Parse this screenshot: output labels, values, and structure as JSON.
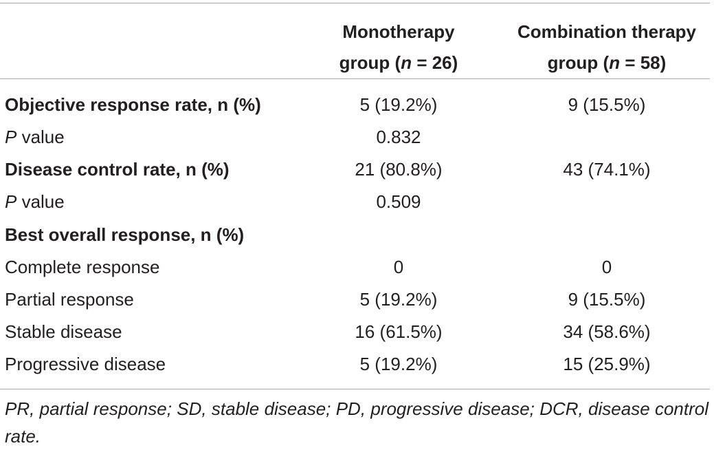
{
  "header": {
    "col1": {
      "line1": "Monotherapy",
      "line2_pre": "group (",
      "line2_n": "n",
      "line2_post": " = 26)"
    },
    "col2": {
      "line1": "Combination therapy",
      "line2_pre": "group (",
      "line2_n": "n",
      "line2_post": " = 58)"
    }
  },
  "rows": [
    {
      "label": "Objective response rate, n (%)",
      "mono": "5 (19.2%)",
      "combo": "9 (15.5%)"
    },
    {
      "label_italic": "P",
      "label_rest": " value",
      "mono": "0.832",
      "combo": ""
    },
    {
      "label": "Disease control rate, n (%)",
      "mono": "21 (80.8%)",
      "combo": "43 (74.1%)"
    },
    {
      "label_italic": "P",
      "label_rest": " value",
      "mono": "0.509",
      "combo": ""
    },
    {
      "label": "Best overall response, n (%)",
      "mono": "",
      "combo": ""
    },
    {
      "label": "Complete response",
      "mono": "0",
      "combo": "0"
    },
    {
      "label": "Partial response",
      "mono": "5 (19.2%)",
      "combo": "9 (15.5%)"
    },
    {
      "label": "Stable disease",
      "mono": "16 (61.5%)",
      "combo": "34 (58.6%)"
    },
    {
      "label": "Progressive disease",
      "mono": "5 (19.2%)",
      "combo": "15 (25.9%)"
    }
  ],
  "footnote": "PR, partial response; SD, stable disease; PD, progressive disease; DCR, disease control rate."
}
